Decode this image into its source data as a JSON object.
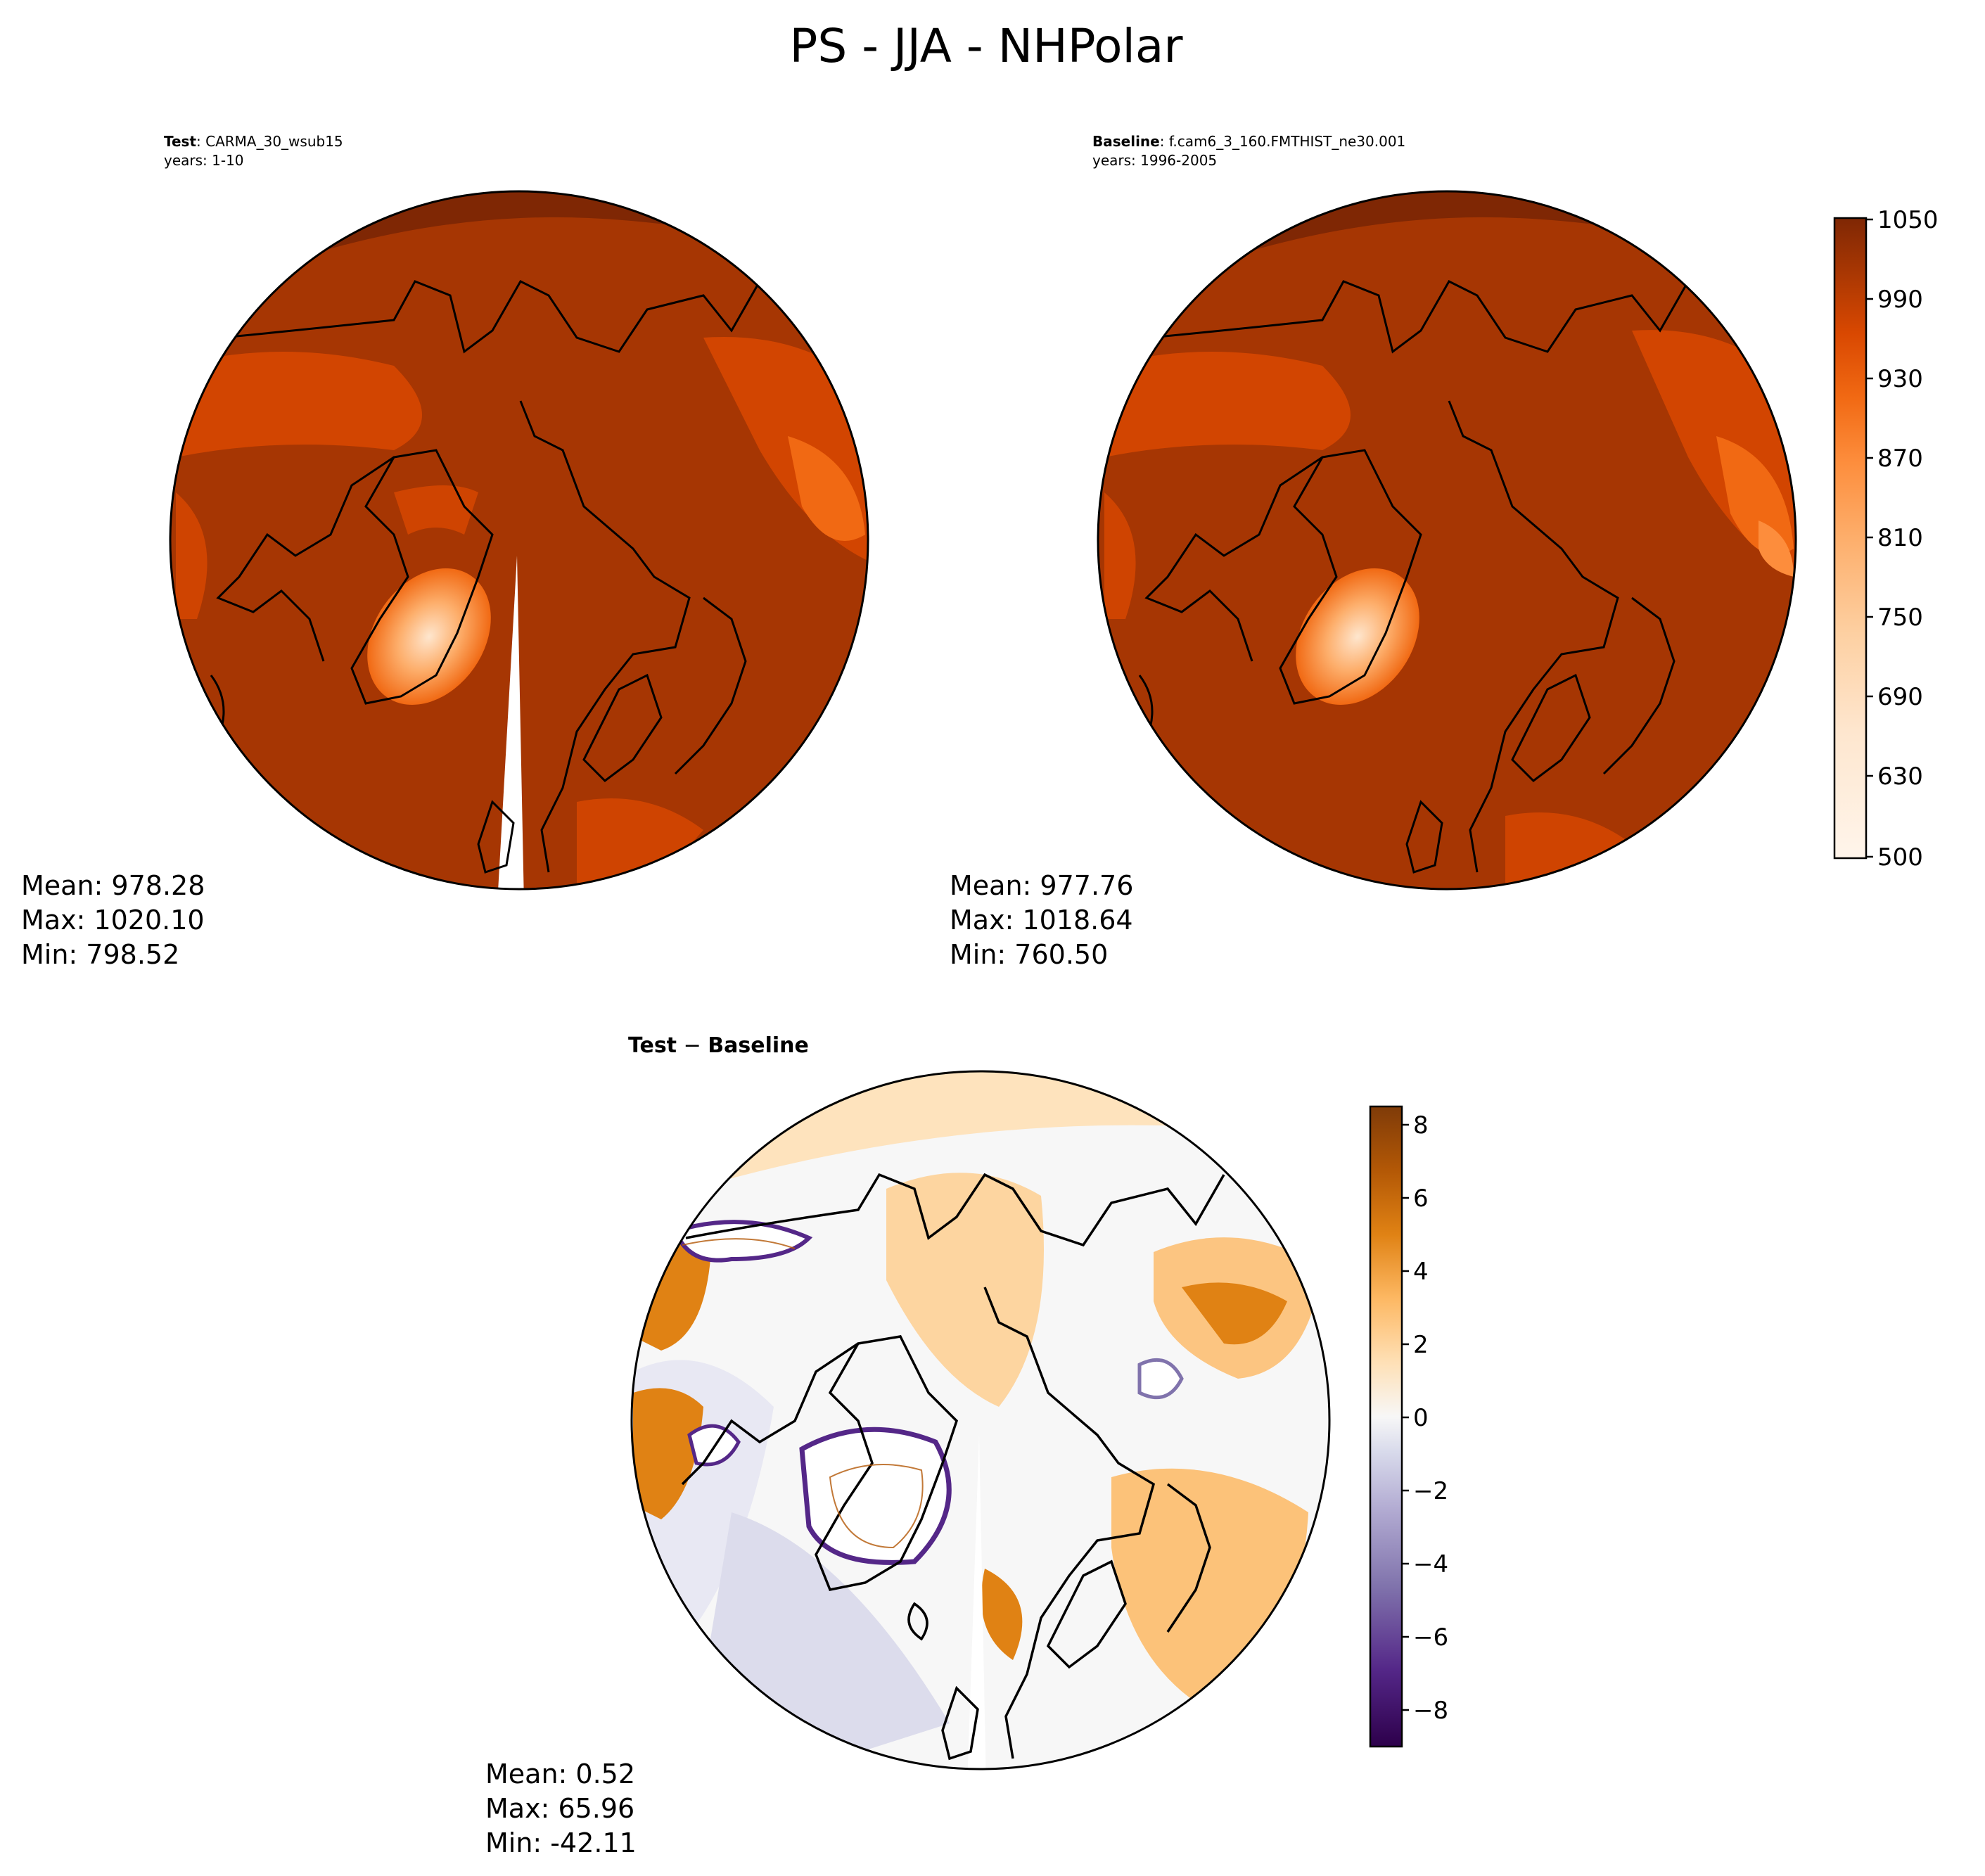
{
  "figure": {
    "title": "PS - JJA - NHPolar"
  },
  "panels": {
    "test": {
      "label_bold": "Test",
      "label_rest": ": CARMA_30_wsub15",
      "years": "years: 1-10",
      "mean": "Mean: 978.28",
      "max": "Max: 1020.10",
      "min": "Min: 798.52"
    },
    "baseline": {
      "label_bold": "Baseline",
      "label_rest": ": f.cam6_3_160.FMTHIST_ne30.001",
      "years": "years: 1996-2005",
      "mean": "Mean: 977.76",
      "max": "Max: 1018.64",
      "min": "Min: 760.50"
    },
    "diff": {
      "label_a": "Test",
      "label_op": " − ",
      "label_b": "Baseline",
      "mean": "Mean:  0.52",
      "max": "Max: 65.96",
      "min": "Min: -42.11"
    }
  },
  "colors": {
    "abs_ramp": [
      "#fff5eb",
      "#fee6ce",
      "#fdd0a2",
      "#fdae6b",
      "#fd8d3c",
      "#f16913",
      "#d94801",
      "#a63603",
      "#7f2704"
    ],
    "diff_ramp": [
      "#2d004b",
      "#542788",
      "#8073ac",
      "#b2abd2",
      "#d8daeb",
      "#f7f7f7",
      "#fee0b6",
      "#fdb863",
      "#e08214",
      "#b35806",
      "#7f3b08"
    ],
    "coast": "#000000",
    "diff_line": "#b35806"
  },
  "chart_data": [
    {
      "type": "heatmap",
      "name": "test",
      "projection": "north-polar-stereographic",
      "variable": "PS",
      "colorbar": {
        "levels": [
          500,
          1050
        ],
        "ticks": [
          "1050",
          "990",
          "930",
          "870",
          "810",
          "750",
          "690",
          "630",
          "500"
        ]
      }
    },
    {
      "type": "heatmap",
      "name": "baseline",
      "projection": "north-polar-stereographic",
      "variable": "PS"
    },
    {
      "type": "heatmap",
      "name": "difference",
      "projection": "north-polar-stereographic",
      "variable": "PS",
      "colorbar": {
        "range": [
          -9,
          8.5
        ],
        "ticks": [
          "8",
          "6",
          "4",
          "2",
          "0",
          "−2",
          "−4",
          "−6",
          "−8"
        ]
      }
    }
  ]
}
